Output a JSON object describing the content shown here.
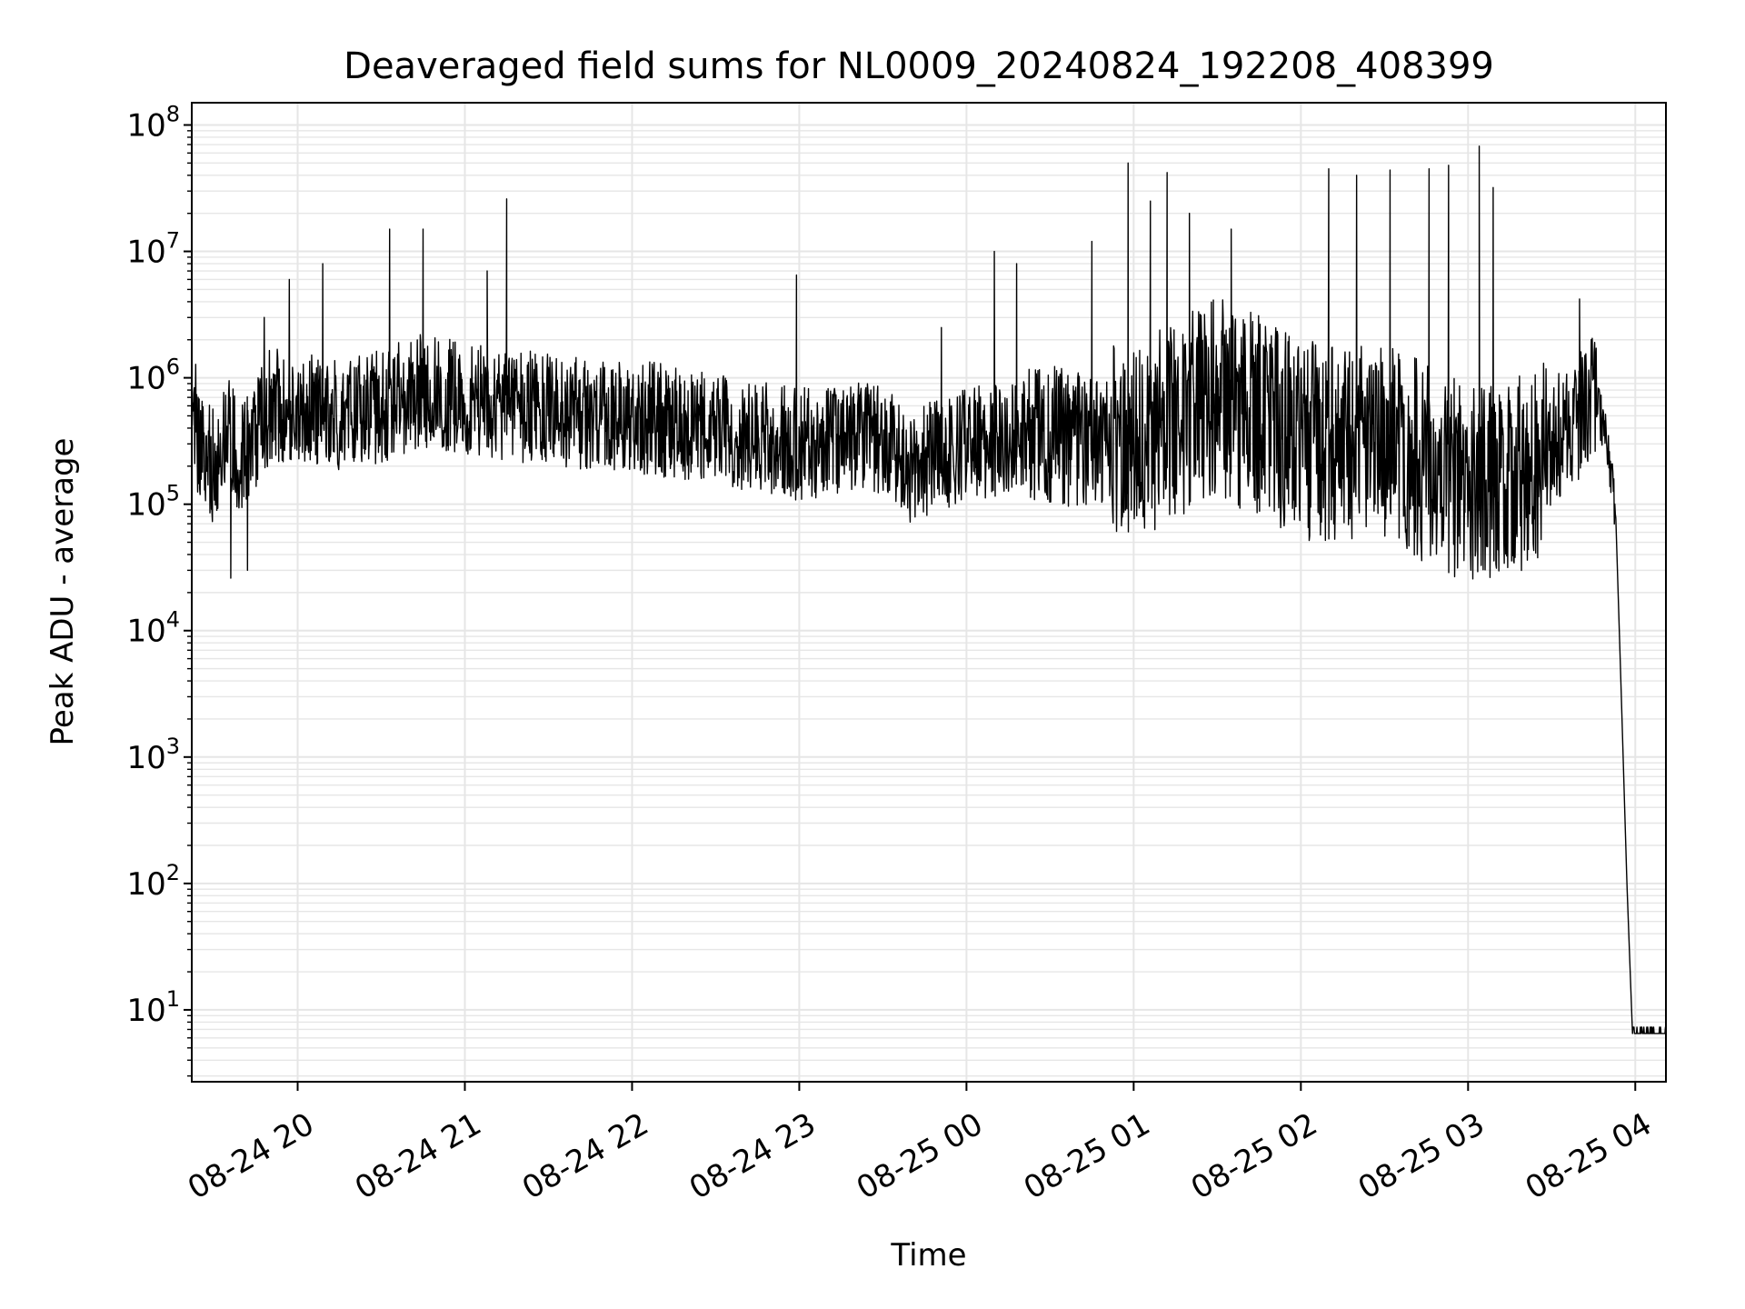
{
  "chart_data": {
    "type": "line",
    "title": "Deaveraged field sums for NL0009_20240824_192208_408399",
    "xlabel": "Time",
    "ylabel": "Peak ADU - average",
    "y_scale": "log",
    "ylim": [
      2.7,
      150000000
    ],
    "xlim": [
      "2024-08-24 19:22",
      "2024-08-25 04:11"
    ],
    "grid": true,
    "line_color": "#000000",
    "grid_color": "#e6e6e6",
    "x_ticks": [
      {
        "time": "2024-08-24 20:00",
        "label": "08-24 20"
      },
      {
        "time": "2024-08-24 21:00",
        "label": "08-24 21"
      },
      {
        "time": "2024-08-24 22:00",
        "label": "08-24 22"
      },
      {
        "time": "2024-08-24 23:00",
        "label": "08-24 23"
      },
      {
        "time": "2024-08-25 00:00",
        "label": "08-25 00"
      },
      {
        "time": "2024-08-25 01:00",
        "label": "08-25 01"
      },
      {
        "time": "2024-08-25 02:00",
        "label": "08-25 02"
      },
      {
        "time": "2024-08-25 03:00",
        "label": "08-25 03"
      },
      {
        "time": "2024-08-25 04:00",
        "label": "08-25 04"
      }
    ],
    "y_ticks": [
      {
        "value": 10,
        "base": "10",
        "exp": "1"
      },
      {
        "value": 100,
        "base": "10",
        "exp": "2"
      },
      {
        "value": 1000,
        "base": "10",
        "exp": "3"
      },
      {
        "value": 10000,
        "base": "10",
        "exp": "4"
      },
      {
        "value": 100000,
        "base": "10",
        "exp": "5"
      },
      {
        "value": 1000000,
        "base": "10",
        "exp": "6"
      },
      {
        "value": 10000000,
        "base": "10",
        "exp": "7"
      },
      {
        "value": 100000000,
        "base": "10",
        "exp": "8"
      }
    ],
    "series": [
      {
        "baseline": [
          {
            "x": "2024-08-24 19:22",
            "y": 800000
          },
          {
            "x": "2024-08-24 19:25",
            "y": 250000
          },
          {
            "x": "2024-08-24 19:30",
            "y": 200000
          },
          {
            "x": "2024-08-24 19:35",
            "y": 350000
          },
          {
            "x": "2024-08-24 19:40",
            "y": 220000
          },
          {
            "x": "2024-08-24 19:45",
            "y": 350000
          },
          {
            "x": "2024-08-24 19:50",
            "y": 600000
          },
          {
            "x": "2024-08-24 20:00",
            "y": 600000
          },
          {
            "x": "2024-08-24 20:15",
            "y": 500000
          },
          {
            "x": "2024-08-24 20:30",
            "y": 600000
          },
          {
            "x": "2024-08-24 20:45",
            "y": 800000
          },
          {
            "x": "2024-08-24 21:00",
            "y": 700000
          },
          {
            "x": "2024-08-24 21:30",
            "y": 550000
          },
          {
            "x": "2024-08-24 22:00",
            "y": 500000
          },
          {
            "x": "2024-08-24 22:30",
            "y": 400000
          },
          {
            "x": "2024-08-24 23:00",
            "y": 300000
          },
          {
            "x": "2024-08-24 23:30",
            "y": 350000
          },
          {
            "x": "2024-08-24 23:40",
            "y": 200000
          },
          {
            "x": "2024-08-25 00:00",
            "y": 300000
          },
          {
            "x": "2024-08-25 00:30",
            "y": 350000
          },
          {
            "x": "2024-08-25 01:00",
            "y": 300000
          },
          {
            "x": "2024-08-25 01:30",
            "y": 700000
          },
          {
            "x": "2024-08-25 01:45",
            "y": 500000
          },
          {
            "x": "2024-08-25 02:00",
            "y": 300000
          },
          {
            "x": "2024-08-25 02:30",
            "y": 350000
          },
          {
            "x": "2024-08-25 02:45",
            "y": 200000
          },
          {
            "x": "2024-08-25 03:00",
            "y": 150000
          },
          {
            "x": "2024-08-25 03:15",
            "y": 150000
          },
          {
            "x": "2024-08-25 03:30",
            "y": 300000
          },
          {
            "x": "2024-08-25 03:40",
            "y": 500000
          },
          {
            "x": "2024-08-25 03:45",
            "y": 800000
          },
          {
            "x": "2024-08-25 03:50",
            "y": 300000
          },
          {
            "x": "2024-08-25 03:53",
            "y": 80000
          },
          {
            "x": "2024-08-25 03:55",
            "y": 3000
          },
          {
            "x": "2024-08-25 03:57",
            "y": 100
          },
          {
            "x": "2024-08-25 03:59",
            "y": 6.5
          },
          {
            "x": "2024-08-25 04:11",
            "y": 6.5
          }
        ],
        "spikes": [
          {
            "x": "2024-08-24 19:36",
            "y": 26000
          },
          {
            "x": "2024-08-24 19:42",
            "y": 30000
          },
          {
            "x": "2024-08-24 19:48",
            "y": 3000000
          },
          {
            "x": "2024-08-24 19:57",
            "y": 6000000
          },
          {
            "x": "2024-08-24 20:09",
            "y": 8000000
          },
          {
            "x": "2024-08-24 20:33",
            "y": 15000000
          },
          {
            "x": "2024-08-24 20:45",
            "y": 15000000
          },
          {
            "x": "2024-08-24 21:08",
            "y": 7000000
          },
          {
            "x": "2024-08-24 21:15",
            "y": 26000000
          },
          {
            "x": "2024-08-24 22:59",
            "y": 6500000
          },
          {
            "x": "2024-08-24 23:51",
            "y": 2500000
          },
          {
            "x": "2024-08-25 00:10",
            "y": 10000000
          },
          {
            "x": "2024-08-25 00:18",
            "y": 8000000
          },
          {
            "x": "2024-08-25 00:45",
            "y": 12000000
          },
          {
            "x": "2024-08-25 00:58",
            "y": 50000000
          },
          {
            "x": "2024-08-25 01:06",
            "y": 25000000
          },
          {
            "x": "2024-08-25 01:12",
            "y": 42000000
          },
          {
            "x": "2024-08-25 01:20",
            "y": 20000000
          },
          {
            "x": "2024-08-25 01:35",
            "y": 15000000
          },
          {
            "x": "2024-08-25 02:10",
            "y": 45000000
          },
          {
            "x": "2024-08-25 02:20",
            "y": 40000000
          },
          {
            "x": "2024-08-25 02:32",
            "y": 44000000
          },
          {
            "x": "2024-08-25 02:46",
            "y": 45000000
          },
          {
            "x": "2024-08-25 02:53",
            "y": 48000000
          },
          {
            "x": "2024-08-25 03:04",
            "y": 68000000
          },
          {
            "x": "2024-08-25 03:09",
            "y": 32000000
          },
          {
            "x": "2024-08-25 03:40",
            "y": 4200000
          }
        ]
      }
    ]
  }
}
